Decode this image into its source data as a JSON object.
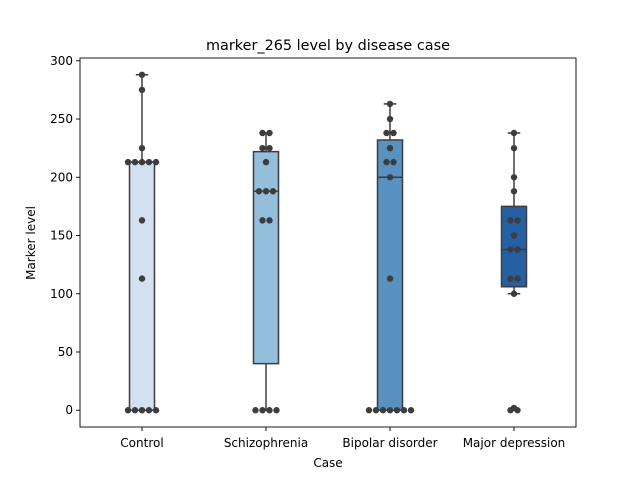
{
  "chart_data": {
    "type": "box",
    "title": "marker_265 level by disease case",
    "xlabel": "Case",
    "ylabel": "Marker level",
    "categories": [
      "Control",
      "Schizophrenia",
      "Bipolar disorder",
      "Major depression"
    ],
    "ylim": [
      -14.4,
      302.4
    ],
    "yticks": [
      0,
      50,
      100,
      150,
      200,
      250,
      300
    ],
    "grid": false,
    "box_colors": [
      "#d3e0f1",
      "#94bfdc",
      "#5792c1",
      "#2660a4"
    ],
    "boxes": [
      {
        "category": "Control",
        "whisker_low": 0,
        "q1": 0,
        "median": 213,
        "q3": 213,
        "whisker_high": 288
      },
      {
        "category": "Schizophrenia",
        "whisker_low": 0,
        "q1": 40,
        "median": 188,
        "q3": 222,
        "whisker_high": 238
      },
      {
        "category": "Bipolar disorder",
        "whisker_low": 0,
        "q1": 0,
        "median": 200,
        "q3": 232,
        "whisker_high": 263
      },
      {
        "category": "Major depression",
        "whisker_low": 100,
        "q1": 106,
        "median": 138,
        "q3": 175,
        "whisker_high": 238
      }
    ],
    "points": [
      {
        "category": "Control",
        "values": [
          288,
          275,
          225,
          213,
          213,
          213,
          213,
          213,
          163,
          113,
          0,
          0,
          0,
          0,
          0
        ]
      },
      {
        "category": "Schizophrenia",
        "values": [
          238,
          238,
          225,
          225,
          213,
          188,
          188,
          188,
          163,
          163,
          0,
          0,
          0,
          0
        ]
      },
      {
        "category": "Bipolar disorder",
        "values": [
          263,
          250,
          238,
          238,
          225,
          213,
          213,
          200,
          113,
          0,
          0,
          0,
          0,
          0,
          0,
          0
        ]
      },
      {
        "category": "Major depression",
        "values": [
          238,
          225,
          200,
          188,
          163,
          163,
          150,
          138,
          138,
          113,
          113,
          100,
          0,
          0,
          2
        ]
      }
    ]
  }
}
